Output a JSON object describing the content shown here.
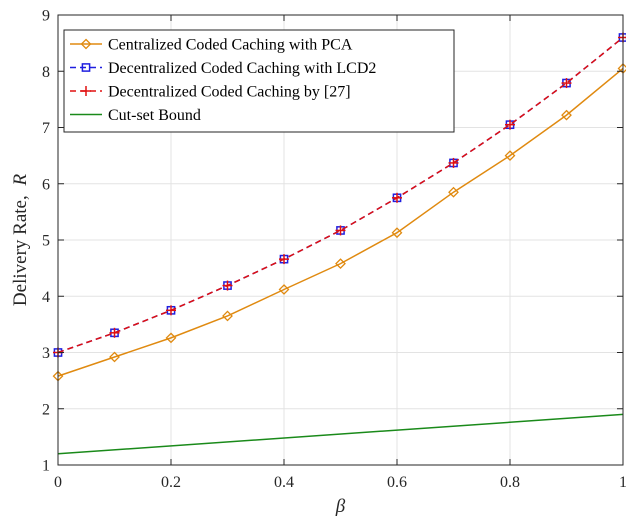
{
  "chart_data": {
    "type": "line",
    "xlabel": "β",
    "ylabel": "Delivery Rate,",
    "ylabel_symbol": "R",
    "xlim": [
      0,
      1
    ],
    "ylim": [
      1,
      9
    ],
    "x_ticks": [
      "0",
      "0.2",
      "0.4",
      "0.6",
      "0.8",
      "1"
    ],
    "y_ticks": [
      "1",
      "2",
      "3",
      "4",
      "5",
      "6",
      "7",
      "8",
      "9"
    ],
    "grid": true,
    "legend_position": "top-left",
    "series": [
      {
        "name": "Centralized Coded Caching with PCA",
        "color": "#E08A10",
        "line_style": "solid",
        "marker": "diamond",
        "x": [
          0,
          0.1,
          0.2,
          0.3,
          0.4,
          0.5,
          0.6,
          0.7,
          0.8,
          0.9,
          1
        ],
        "y": [
          2.58,
          2.92,
          3.26,
          3.65,
          4.12,
          4.58,
          5.13,
          5.85,
          6.5,
          7.22,
          8.05
        ]
      },
      {
        "name": "Decentralized Coded  Caching with LCD2",
        "color": "#1F1FE0",
        "line_style": "dashed",
        "marker": "square",
        "x": [
          0,
          0.1,
          0.2,
          0.3,
          0.4,
          0.5,
          0.6,
          0.7,
          0.8,
          0.9,
          1
        ],
        "y": [
          3.0,
          3.35,
          3.75,
          4.19,
          4.66,
          5.17,
          5.75,
          6.37,
          7.05,
          7.79,
          8.6
        ]
      },
      {
        "name": "Decentralized Coded Caching by [27]",
        "color": "#E01010",
        "line_style": "dashed",
        "marker": "plus",
        "x": [
          0,
          0.1,
          0.2,
          0.3,
          0.4,
          0.5,
          0.6,
          0.7,
          0.8,
          0.9,
          1
        ],
        "y": [
          3.0,
          3.35,
          3.75,
          4.19,
          4.66,
          5.17,
          5.75,
          6.37,
          7.05,
          7.79,
          8.6
        ]
      },
      {
        "name": "Cut-set Bound",
        "color": "#1A8A1A",
        "line_style": "solid",
        "marker": "none",
        "x": [
          0,
          1
        ],
        "y": [
          1.2,
          1.9
        ]
      }
    ]
  }
}
